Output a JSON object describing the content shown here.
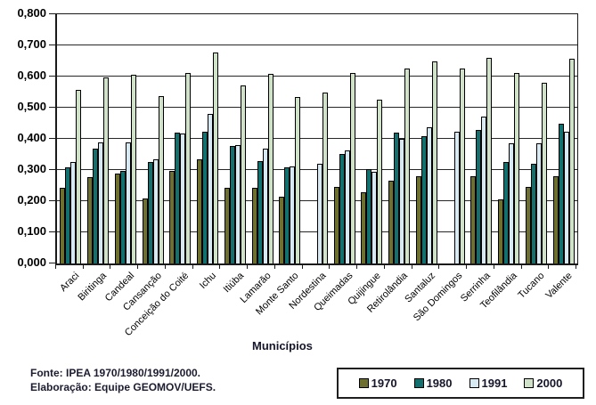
{
  "chart_data": {
    "type": "bar",
    "title": "",
    "xlabel": "Municípios",
    "ylabel": "",
    "ylim": [
      0.0,
      0.8
    ],
    "ytick_step": 0.1,
    "ytick_labels": [
      "0,000",
      "0,100",
      "0,200",
      "0,300",
      "0,400",
      "0,500",
      "0,600",
      "0,700",
      "0,800"
    ],
    "grid": true,
    "legend_position": "bottom-right",
    "categories": [
      "Araci",
      "Biritinga",
      "Candeal",
      "Cansanção",
      "Conceição do Coité",
      "Ichu",
      "Itiúba",
      "Lamarão",
      "Monte Santo",
      "Nordestina",
      "Queimadas",
      "Quijingue",
      "Retirolândia",
      "Santaluz",
      "São Domingos",
      "Serrinha",
      "Teofilândia",
      "Tucano",
      "Valente"
    ],
    "series": [
      {
        "name": "1970",
        "color": "#6e7030",
        "values": [
          0.242,
          0.278,
          0.29,
          0.208,
          0.298,
          0.333,
          0.242,
          0.242,
          0.214,
          null,
          0.245,
          0.23,
          0.267,
          0.28,
          null,
          0.28,
          0.205,
          0.245,
          0.281
        ]
      },
      {
        "name": "1980",
        "color": "#12706f",
        "values": [
          0.31,
          0.368,
          0.297,
          0.326,
          0.421,
          0.424,
          0.376,
          0.329,
          0.309,
          null,
          0.352,
          0.304,
          0.421,
          0.41,
          null,
          0.429,
          0.327,
          0.319,
          0.448
        ]
      },
      {
        "name": "1991",
        "color": "#d7eaf3",
        "values": [
          0.326,
          0.39,
          0.389,
          0.334,
          0.416,
          0.48,
          0.38,
          0.37,
          0.312,
          0.32,
          0.364,
          0.293,
          0.399,
          0.437,
          0.424,
          0.472,
          0.386,
          0.385,
          0.424
        ]
      },
      {
        "name": "2000",
        "color": "#d0e3c8",
        "values": [
          0.557,
          0.597,
          0.606,
          0.537,
          0.612,
          0.676,
          0.572,
          0.608,
          0.535,
          0.55,
          0.612,
          0.527,
          0.625,
          0.648,
          0.626,
          0.661,
          0.611,
          0.581,
          0.657
        ]
      }
    ]
  },
  "footer": {
    "fonte": "Fonte: IPEA 1970/1980/1991/2000.",
    "elaboracao": "Elaboração: Equipe GEOMOV/UEFS."
  }
}
